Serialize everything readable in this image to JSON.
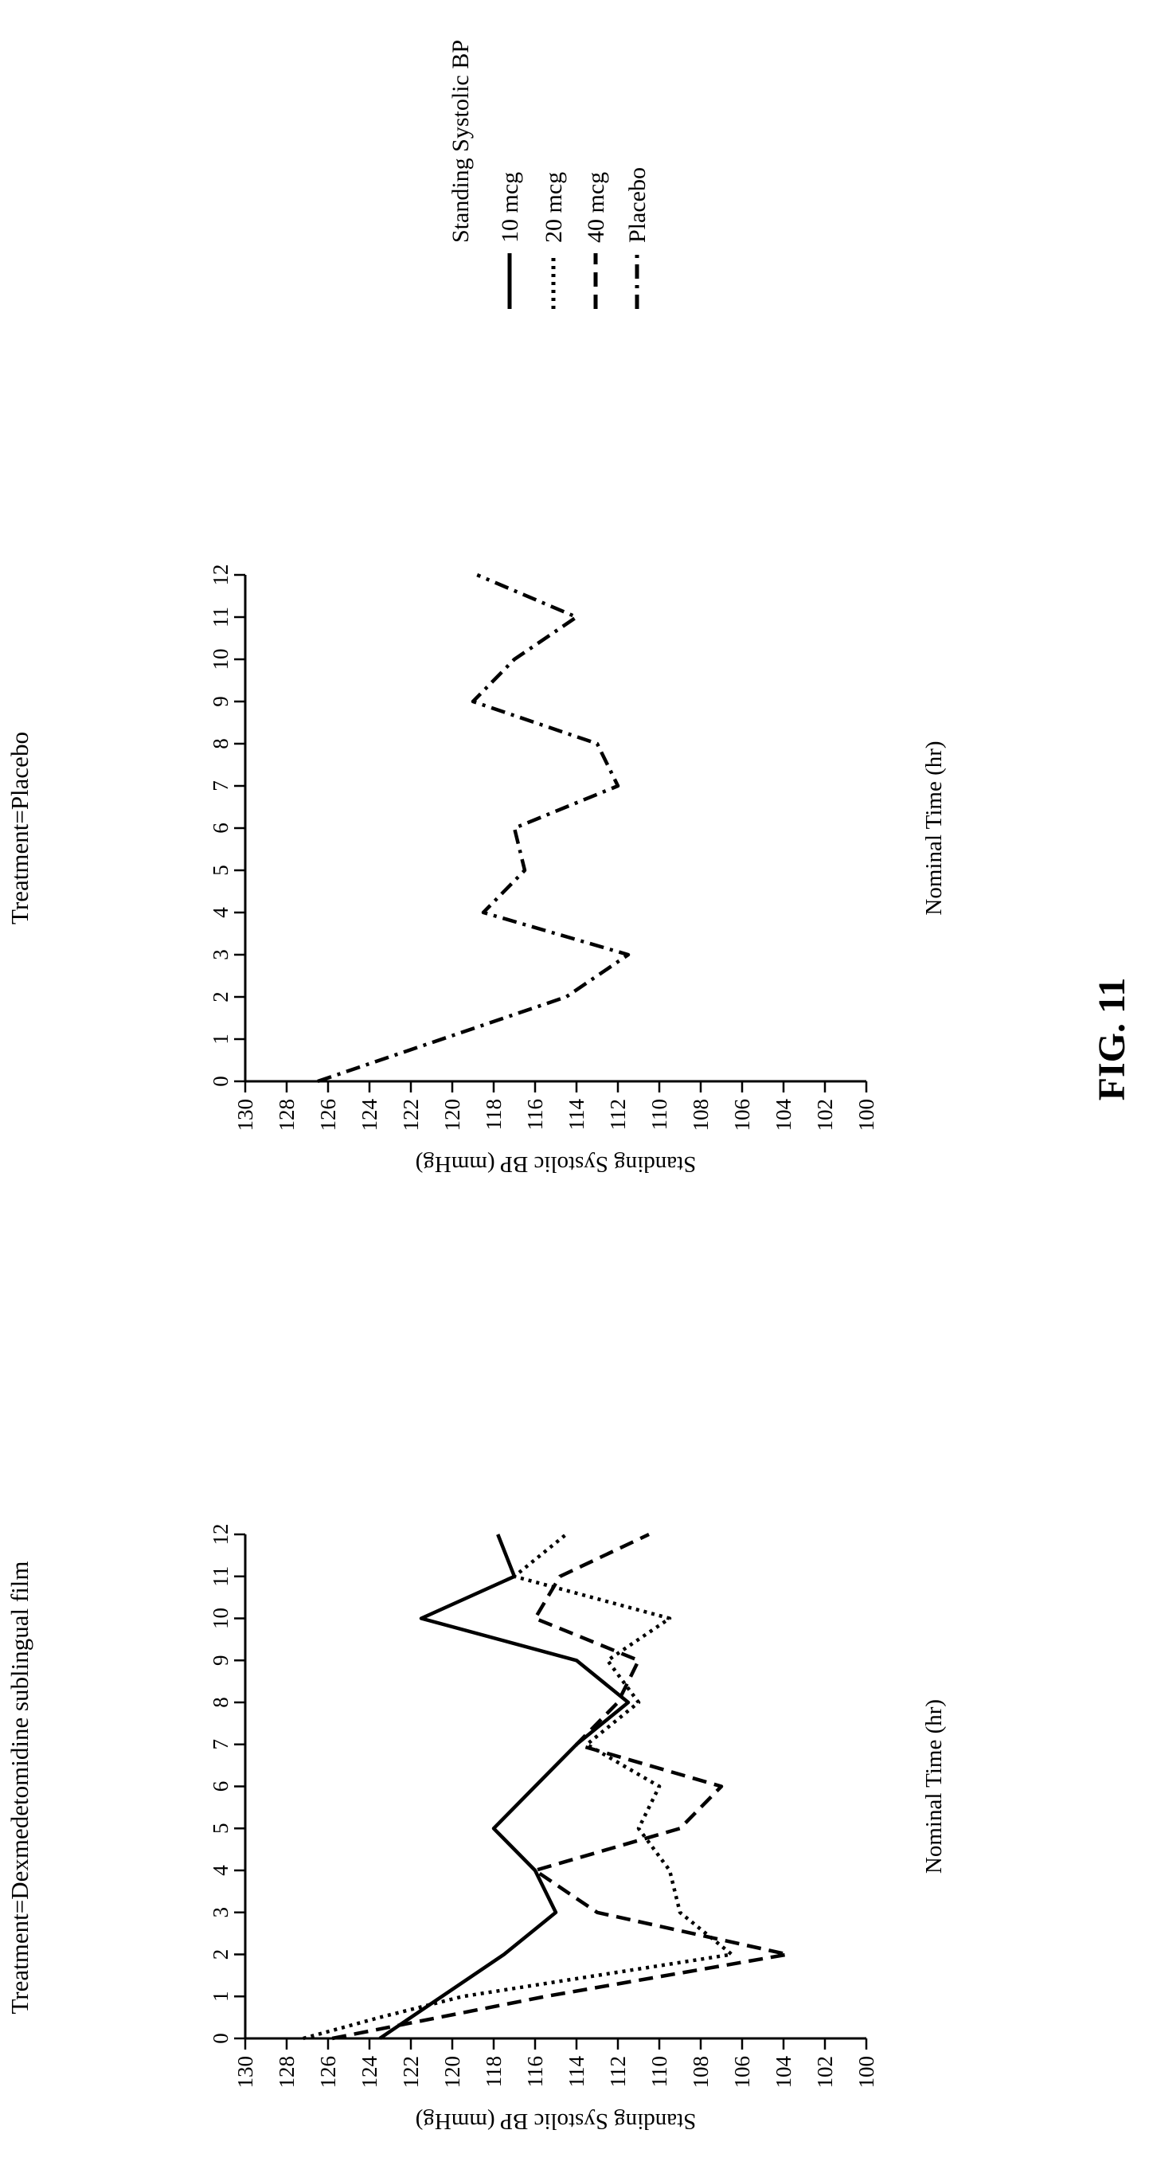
{
  "figure_label": "FIG. 11",
  "legend": {
    "title": "Standing Systolic BP",
    "entries": [
      {
        "label": "10 mcg",
        "style": "solid"
      },
      {
        "label": "20 mcg",
        "style": "dotted"
      },
      {
        "label": "40 mcg",
        "style": "dashed"
      },
      {
        "label": "Placebo",
        "style": "dashdot"
      }
    ]
  },
  "chart_data": [
    {
      "type": "line",
      "title": "Treatment=Dexmedetomidine sublingual film",
      "xlabel": "Nominal Time (hr)",
      "ylabel": "Standing Systolic BP (mmHg)",
      "xlim": [
        0,
        12
      ],
      "ylim": [
        100,
        130
      ],
      "xticks": [
        0,
        1,
        2,
        3,
        4,
        5,
        6,
        7,
        8,
        9,
        10,
        11,
        12
      ],
      "yticks": [
        100,
        102,
        104,
        106,
        108,
        110,
        112,
        114,
        116,
        118,
        120,
        122,
        124,
        126,
        128,
        130
      ],
      "grid": false,
      "series": [
        {
          "name": "10 mcg",
          "style": "solid",
          "x": [
            0,
            0.5,
            1,
            2,
            3,
            4,
            5,
            6,
            7,
            8,
            9,
            10,
            11,
            12
          ],
          "y": [
            123.5,
            122,
            120.5,
            117.5,
            115,
            116,
            118,
            116,
            114,
            111.5,
            114,
            121.5,
            117,
            117.8
          ]
        },
        {
          "name": "20 mcg",
          "style": "dotted",
          "x": [
            0,
            0.5,
            1,
            2,
            3,
            4,
            5,
            6,
            7,
            8,
            9,
            10,
            11,
            12
          ],
          "y": [
            127.2,
            123.5,
            119.5,
            106.5,
            109,
            109.5,
            111,
            110,
            113.5,
            111,
            112.5,
            109.5,
            117,
            114.5
          ]
        },
        {
          "name": "40 mcg",
          "style": "dashed",
          "x": [
            0,
            1,
            2,
            3,
            4,
            5,
            6,
            7,
            8,
            9,
            10,
            11,
            12
          ],
          "y": [
            125.8,
            115.5,
            103.8,
            113,
            116,
            109,
            107,
            114,
            112,
            111,
            116,
            114.8,
            110.5
          ]
        }
      ]
    },
    {
      "type": "line",
      "title": "Treatment=Placebo",
      "xlabel": "Nominal Time (hr)",
      "ylabel": "Standing Systolic BP (mmHg)",
      "xlim": [
        0,
        12
      ],
      "ylim": [
        100,
        130
      ],
      "xticks": [
        0,
        1,
        2,
        3,
        4,
        5,
        6,
        7,
        8,
        9,
        10,
        11,
        12
      ],
      "yticks": [
        100,
        102,
        104,
        106,
        108,
        110,
        112,
        114,
        116,
        118,
        120,
        122,
        124,
        126,
        128,
        130
      ],
      "grid": false,
      "series": [
        {
          "name": "Placebo",
          "style": "dashdot",
          "x": [
            0,
            2,
            3,
            4,
            5,
            6,
            7,
            8,
            9,
            10,
            11,
            12
          ],
          "y": [
            126.5,
            114.5,
            111.5,
            118.5,
            116.5,
            117,
            112,
            113,
            119,
            117,
            114,
            118.8
          ]
        }
      ]
    }
  ]
}
